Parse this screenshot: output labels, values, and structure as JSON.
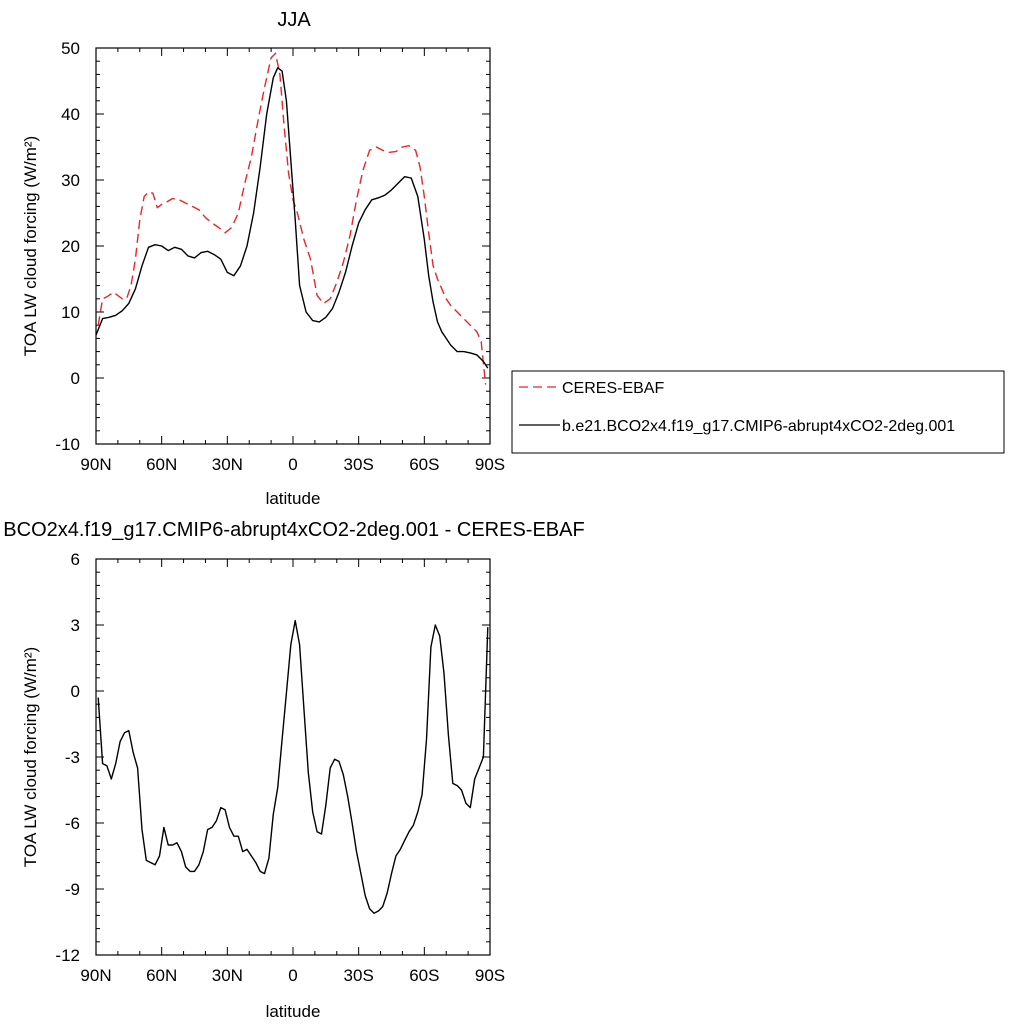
{
  "chart_data": [
    {
      "type": "line",
      "title": "JJA",
      "xlabel": "latitude",
      "ylabel": "TOA LW cloud forcing (W/m²)",
      "xlim": [
        90,
        -90
      ],
      "ylim": [
        -10,
        50
      ],
      "xticks": [
        90,
        60,
        30,
        0,
        -30,
        -60,
        -90
      ],
      "xtick_labels": [
        "90N",
        "60N",
        "30N",
        "0",
        "30S",
        "60S",
        "90S"
      ],
      "yticks": [
        -10,
        0,
        10,
        20,
        30,
        40,
        50
      ],
      "ytick_labels": [
        "-10",
        "0",
        "10",
        "20",
        "30",
        "40",
        "50"
      ],
      "grid": false,
      "legend_position": "right",
      "series": [
        {
          "name": "CERES-EBAF",
          "color": "#e8262a",
          "dash": "dashed",
          "x": [
            89,
            87,
            85,
            82,
            80,
            78,
            76,
            74,
            72,
            70,
            68,
            66,
            64,
            62,
            60,
            58,
            55,
            52,
            49,
            46,
            43,
            40,
            37,
            34,
            31,
            28,
            25,
            22,
            19,
            16,
            13,
            10,
            8,
            6,
            4,
            2,
            0,
            -2,
            -5,
            -8,
            -11,
            -14,
            -17,
            -20,
            -23,
            -26,
            -29,
            -32,
            -35,
            -38,
            -41,
            -44,
            -47,
            -50,
            -53,
            -56,
            -58,
            -60,
            -62,
            -64,
            -66,
            -68,
            -70,
            -72,
            -75,
            -78,
            -81,
            -84,
            -86,
            -88
          ],
          "y": [
            8,
            12,
            12.3,
            13,
            12.5,
            12,
            12,
            14,
            18,
            24,
            27.5,
            28.2,
            28,
            25.8,
            26.3,
            26.6,
            27.2,
            27,
            26.5,
            26,
            25.5,
            24.3,
            23.5,
            22.8,
            22,
            22.8,
            25,
            29.5,
            33.5,
            39,
            44,
            48.5,
            49.2,
            46,
            38,
            31,
            27,
            25,
            21,
            18,
            12.5,
            11.3,
            12,
            14.5,
            17.5,
            21.5,
            27,
            31.5,
            34.5,
            35,
            34.5,
            34.2,
            34.3,
            35,
            35.2,
            34.5,
            32,
            27.5,
            22,
            17,
            15,
            13.5,
            12,
            11,
            10,
            9,
            8,
            7,
            5.5,
            -1
          ]
        },
        {
          "name": "b.e21.BCO2x4.f19_g17.CMIP6-abrupt4xCO2-2deg.001",
          "color": "#000000",
          "dash": "solid",
          "x": [
            90,
            87,
            84,
            81,
            78,
            75,
            72,
            69,
            66,
            63,
            60,
            57,
            54,
            51,
            48,
            45,
            42,
            39,
            36,
            33,
            30,
            27,
            24,
            21,
            18,
            15,
            12,
            9,
            7,
            5,
            3,
            1,
            -1,
            -3,
            -6,
            -9,
            -12,
            -15,
            -18,
            -21,
            -24,
            -27,
            -30,
            -33,
            -36,
            -39,
            -42,
            -45,
            -48,
            -51,
            -54,
            -57,
            -60,
            -62,
            -64,
            -66,
            -68,
            -70,
            -72,
            -75,
            -78,
            -81,
            -84,
            -87,
            -89
          ],
          "y": [
            6.5,
            9,
            9.2,
            9.5,
            10.2,
            11.3,
            13.5,
            17,
            19.8,
            20.2,
            20,
            19.3,
            19.8,
            19.5,
            18.5,
            18.2,
            19,
            19.2,
            18.7,
            18,
            16,
            15.5,
            17,
            20,
            25,
            32,
            40,
            45.5,
            47,
            46.5,
            42,
            33,
            24,
            14,
            10,
            8.7,
            8.5,
            9.2,
            10.5,
            13,
            16,
            20,
            23.5,
            25.5,
            27,
            27.3,
            27.7,
            28.5,
            29.5,
            30.5,
            30.3,
            27.5,
            21,
            15.5,
            11.5,
            8.5,
            7,
            6,
            5,
            4,
            4,
            3.8,
            3.5,
            2.5,
            1.5
          ]
        }
      ]
    },
    {
      "type": "line",
      "title": "BCO2x4.f19_g17.CMIP6-abrupt4xCO2-2deg.001 - CERES-EBAF",
      "xlabel": "latitude",
      "ylabel": "TOA LW cloud forcing (W/m²)",
      "xlim": [
        90,
        -90
      ],
      "ylim": [
        -12,
        6
      ],
      "xticks": [
        90,
        60,
        30,
        0,
        -30,
        -60,
        -90
      ],
      "xtick_labels": [
        "90N",
        "60N",
        "30N",
        "0",
        "30S",
        "60S",
        "90S"
      ],
      "yticks": [
        -12,
        -9,
        -6,
        -3,
        0,
        3,
        6
      ],
      "ytick_labels": [
        "-12",
        "-9",
        "-6",
        "-3",
        "0",
        "3",
        "6"
      ],
      "grid": false,
      "series": [
        {
          "color": "#000000",
          "dash": "solid",
          "x": [
            89,
            87,
            85,
            83,
            81,
            79,
            77,
            75,
            73,
            71,
            69,
            67,
            65,
            63,
            61,
            59,
            57,
            55,
            53,
            51,
            49,
            47,
            45,
            43,
            41,
            39,
            37,
            35,
            33,
            31,
            29,
            27,
            25,
            23,
            21,
            19,
            17,
            15,
            13,
            11,
            9,
            7,
            5,
            3,
            1,
            -1,
            -3,
            -5,
            -7,
            -9,
            -11,
            -13,
            -15,
            -17,
            -19,
            -21,
            -23,
            -25,
            -27,
            -29,
            -31,
            -33,
            -35,
            -37,
            -39,
            -41,
            -43,
            -45,
            -47,
            -49,
            -51,
            -53,
            -55,
            -57,
            -59,
            -61,
            -63,
            -65,
            -67,
            -69,
            -71,
            -73,
            -75,
            -77,
            -79,
            -81,
            -83,
            -85,
            -87,
            -89
          ],
          "y": [
            -0.3,
            -3.3,
            -3.4,
            -4,
            -3.3,
            -2.3,
            -1.9,
            -1.8,
            -2.8,
            -3.5,
            -6.3,
            -7.7,
            -7.8,
            -7.9,
            -7.5,
            -6.2,
            -7,
            -7,
            -6.9,
            -7.3,
            -8,
            -8.2,
            -8.2,
            -7.9,
            -7.3,
            -6.3,
            -6.2,
            -5.9,
            -5.3,
            -5.4,
            -6.2,
            -6.6,
            -6.6,
            -7.3,
            -7.2,
            -7.5,
            -7.8,
            -8.2,
            -8.3,
            -7.6,
            -5.6,
            -4.4,
            -2.2,
            -0.1,
            2.1,
            3.2,
            2.1,
            -0.8,
            -3.7,
            -5.5,
            -6.4,
            -6.5,
            -5.2,
            -3.5,
            -3.1,
            -3.2,
            -3.8,
            -4.8,
            -6,
            -7.3,
            -8.3,
            -9.3,
            -9.9,
            -10.1,
            -10,
            -9.8,
            -9.2,
            -8.3,
            -7.5,
            -7.2,
            -6.8,
            -6.4,
            -6.1,
            -5.5,
            -4.7,
            -2.2,
            2,
            3,
            2.5,
            0.8,
            -2,
            -4.2,
            -4.3,
            -4.5,
            -5.1,
            -5.3,
            -4,
            -3.5,
            -3,
            2.9
          ]
        }
      ]
    }
  ]
}
